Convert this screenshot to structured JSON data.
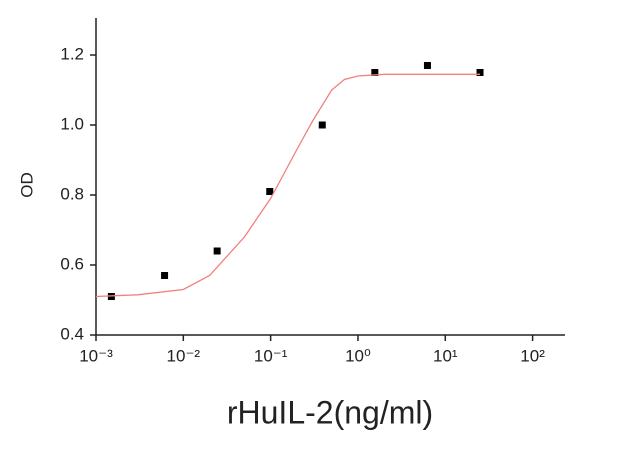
{
  "chart_data": {
    "type": "scatter",
    "x_label": "rHuIL-2(ng/ml)",
    "y_label": "OD",
    "xscale": "log",
    "xlim": [
      0.001,
      235
    ],
    "ylim": [
      0.4,
      1.3
    ],
    "xticks": [
      {
        "value": 0.001,
        "label": "10⁻³"
      },
      {
        "value": 0.01,
        "label": "10⁻²"
      },
      {
        "value": 0.1,
        "label": "10⁻¹"
      },
      {
        "value": 1,
        "label": "10⁰"
      },
      {
        "value": 10,
        "label": "10¹"
      },
      {
        "value": 100,
        "label": "10²"
      }
    ],
    "yticks": [
      0.4,
      0.6,
      0.8,
      {
        "value": 1,
        "label": "1.0"
      },
      1.2
    ],
    "series": [
      {
        "color": "#000000",
        "x": [
          0.0015,
          0.0061,
          0.0244,
          0.0977,
          0.39,
          1.56,
          6.25,
          25
        ],
        "values": [
          0.51,
          0.57,
          0.64,
          0.81,
          1.0,
          1.15,
          1.17,
          1.15
        ]
      },
      {
        "color": "#f08080",
        "line": true,
        "x": [
          0.001,
          0.003,
          0.01,
          0.02,
          0.05,
          0.1,
          0.2,
          0.3,
          0.5,
          0.7,
          1,
          2,
          25
        ],
        "values": [
          0.51,
          0.515,
          0.53,
          0.57,
          0.68,
          0.79,
          0.93,
          1.01,
          1.1,
          1.13,
          1.14,
          1.145,
          1.145
        ]
      }
    ]
  }
}
